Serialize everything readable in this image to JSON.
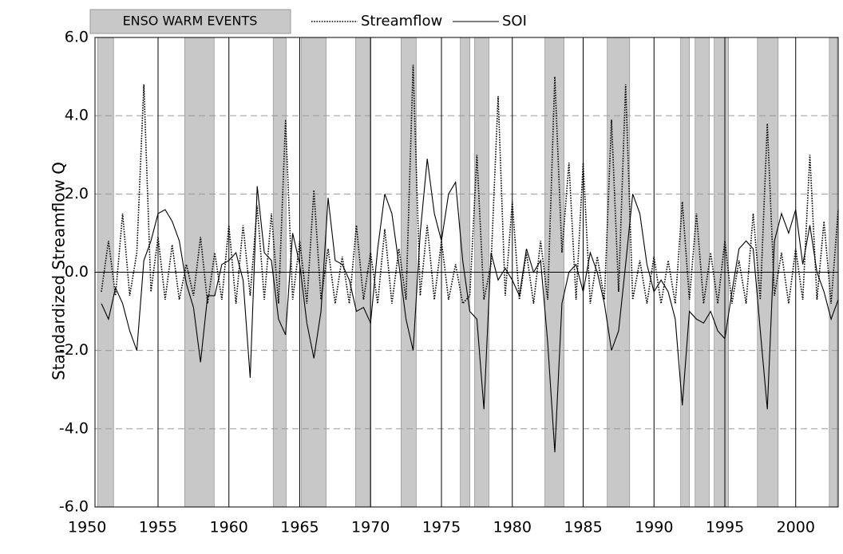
{
  "chart_data": {
    "type": "line",
    "y_label": "Standardized Streamflow Q",
    "legend_position": "top-left",
    "enso_label": "ENSO WARM EVENTS",
    "enso_color": "#c8c8c8",
    "enso_events": [
      [
        1950.73,
        1951.86
      ],
      [
        1956.88,
        1958.96
      ],
      [
        1963.13,
        1964.04
      ],
      [
        1965.11,
        1966.86
      ],
      [
        1968.94,
        1969.95
      ],
      [
        1972.15,
        1973.22
      ],
      [
        1976.33,
        1977.0
      ],
      [
        1977.34,
        1978.35
      ],
      [
        1982.3,
        1983.65
      ],
      [
        1986.7,
        1988.28
      ],
      [
        1991.88,
        1992.5
      ],
      [
        1992.9,
        1993.9
      ],
      [
        1994.25,
        1995.26
      ],
      [
        1997.3,
        1998.76
      ],
      [
        2002.37,
        2002.93
      ]
    ],
    "xlim": [
      1950.55,
      2003.0
    ],
    "xticks": [
      1950,
      1955,
      1960,
      1965,
      1970,
      1975,
      1980,
      1985,
      1990,
      1995,
      2000
    ],
    "ylim": [
      -6,
      6
    ],
    "yticks": [
      {
        "value": -6,
        "label": "-6.0"
      },
      {
        "value": -4,
        "label": "-4.0"
      },
      {
        "value": -2,
        "label": "-2.0"
      },
      {
        "value": 0,
        "label": "0.0"
      },
      {
        "value": 2,
        "label": "2.0"
      },
      {
        "value": 4,
        "label": "4.0"
      },
      {
        "value": 6,
        "label": "6.0"
      }
    ],
    "grid": true,
    "x": [
      1951,
      1951.5,
      1952,
      1952.5,
      1953,
      1953.5,
      1954,
      1954.5,
      1955,
      1955.5,
      1956,
      1956.5,
      1957,
      1957.5,
      1958,
      1958.5,
      1959,
      1959.5,
      1960,
      1960.5,
      1961,
      1961.5,
      1962,
      1962.5,
      1963,
      1963.5,
      1964,
      1964.5,
      1965,
      1965.5,
      1966,
      1966.5,
      1967,
      1967.5,
      1968,
      1968.5,
      1969,
      1969.5,
      1970,
      1970.5,
      1971,
      1971.5,
      1972,
      1972.5,
      1973,
      1973.5,
      1974,
      1974.5,
      1975,
      1975.5,
      1976,
      1976.5,
      1977,
      1977.5,
      1978,
      1978.5,
      1979,
      1979.5,
      1980,
      1980.5,
      1981,
      1981.5,
      1982,
      1982.5,
      1983,
      1983.5,
      1984,
      1984.5,
      1985,
      1985.5,
      1986,
      1986.5,
      1987,
      1987.5,
      1988,
      1988.5,
      1989,
      1989.5,
      1990,
      1990.5,
      1991,
      1991.5,
      1992,
      1992.5,
      1993,
      1993.5,
      1994,
      1994.5,
      1995,
      1995.5,
      1996,
      1996.5,
      1997,
      1997.5,
      1998,
      1998.5,
      1999,
      1999.5,
      2000,
      2000.5,
      2001,
      2001.5,
      2002,
      2002.5,
      2003
    ],
    "series": [
      {
        "name": "Streamflow",
        "color": "#000000",
        "style": "dotted",
        "values": [
          -0.5,
          0.8,
          -0.6,
          1.5,
          -0.6,
          0.5,
          4.8,
          -0.5,
          0.9,
          -0.7,
          0.7,
          -0.7,
          0.2,
          -0.6,
          0.9,
          -0.8,
          0.5,
          -0.7,
          1.2,
          -0.8,
          1.2,
          -0.6,
          1.7,
          -0.7,
          1.5,
          -0.8,
          3.9,
          -0.7,
          0.8,
          -0.8,
          2.1,
          -0.7,
          0.6,
          -0.8,
          0.4,
          -0.8,
          1.2,
          -0.7,
          0.5,
          -0.8,
          1.1,
          -0.8,
          0.6,
          -0.7,
          5.3,
          -0.6,
          1.2,
          -0.7,
          0.8,
          -0.7,
          0.2,
          -0.8,
          -0.6,
          3.0,
          -0.7,
          0.2,
          4.5,
          -0.6,
          1.8,
          -0.7,
          0.5,
          -0.8,
          0.8,
          -0.7,
          5.0,
          0.5,
          2.8,
          -0.7,
          2.8,
          -0.8,
          0.4,
          -0.7,
          3.9,
          -0.5,
          4.8,
          -0.7,
          0.3,
          -0.8,
          0.4,
          -0.8,
          0.3,
          -0.8,
          1.8,
          -0.7,
          1.5,
          -0.8,
          0.5,
          -0.8,
          0.8,
          -0.8,
          0.3,
          -0.8,
          1.5,
          -0.7,
          3.8,
          -0.6,
          0.5,
          -0.8,
          0.6,
          -0.7,
          3.0,
          -0.7,
          1.3,
          -0.8,
          1.6
        ]
      },
      {
        "name": "SOI",
        "color": "#000000",
        "style": "solid",
        "values": [
          -0.8,
          -1.2,
          -0.4,
          -0.8,
          -1.5,
          -2.0,
          0.3,
          0.8,
          1.5,
          1.6,
          1.3,
          0.8,
          -0.3,
          -0.9,
          -2.3,
          -0.6,
          -0.6,
          0.2,
          0.3,
          0.5,
          -0.2,
          -2.7,
          2.2,
          0.5,
          0.3,
          -1.2,
          -1.6,
          1.0,
          0.2,
          -1.3,
          -2.2,
          -1.0,
          1.9,
          0.3,
          0.2,
          -0.2,
          -1.0,
          -0.9,
          -1.3,
          0.6,
          2.0,
          1.5,
          0.2,
          -1.2,
          -2.0,
          1.0,
          2.9,
          1.5,
          0.8,
          2.0,
          2.3,
          0.3,
          -1.0,
          -1.2,
          -3.5,
          0.5,
          -0.2,
          0.1,
          -0.2,
          -0.6,
          0.6,
          0.0,
          0.3,
          -1.8,
          -4.6,
          -0.8,
          0.0,
          0.2,
          -0.5,
          0.5,
          0.0,
          -0.8,
          -2.0,
          -1.5,
          0.2,
          2.0,
          1.5,
          0.2,
          -0.5,
          -0.2,
          -0.5,
          -1.2,
          -3.4,
          -1.0,
          -1.2,
          -1.3,
          -1.0,
          -1.5,
          -1.7,
          -0.5,
          0.6,
          0.8,
          0.6,
          -1.5,
          -3.5,
          0.8,
          1.5,
          1.0,
          1.6,
          0.2,
          1.2,
          0.0,
          -0.5,
          -1.2,
          -0.7
        ]
      }
    ]
  }
}
